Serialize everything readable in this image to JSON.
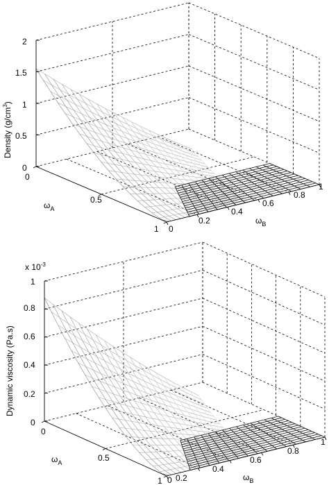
{
  "chart_data": [
    {
      "type": "surface3d",
      "zlabel_main": "Density (g/cm",
      "zlabel_sup": "3",
      "zlabel_end": ")",
      "xlabel_main": "ω",
      "xlabel_sub": "A",
      "ylabel_main": "ω",
      "ylabel_sub": "B",
      "z_ticks": [
        "0",
        "0.5",
        "1",
        "1.5",
        "2"
      ],
      "x_ticks": [
        "0",
        "0.5",
        "1"
      ],
      "y_ticks": [
        "0",
        "0.2",
        "0.4",
        "0.6",
        "0.8",
        "1"
      ],
      "zlim": [
        0,
        2
      ],
      "xlim": [
        0,
        1
      ],
      "ylim": [
        0,
        1
      ],
      "grid": true,
      "surface": {
        "description_values": {
          "pure_A": 1.55,
          "pure_C": 0.0,
          "pure_B": 0.0
        }
      }
    },
    {
      "type": "surface3d",
      "exponent_label": "x 10",
      "exponent_sup": "-3",
      "zlabel_main": "Dynamic viscosity (Pa.s)",
      "xlabel_main": "ω",
      "xlabel_sub": "A",
      "ylabel_main": "ω",
      "ylabel_sub": "B",
      "z_ticks": [
        "0",
        "0.2",
        "0.4",
        "0.6",
        "0.8",
        "1"
      ],
      "x_ticks": [
        "0",
        "0.5",
        "1"
      ],
      "y_ticks": [
        "0",
        "0.2",
        "0.4",
        "0.6",
        "0.8",
        "1"
      ],
      "zlim": [
        0,
        1
      ],
      "xlim": [
        0,
        1
      ],
      "ylim": [
        0,
        1
      ],
      "grid": true,
      "surface": {
        "description_values": {
          "pure_A": 0.88,
          "pure_C": 0.0,
          "pure_B": 0.0
        }
      }
    }
  ]
}
